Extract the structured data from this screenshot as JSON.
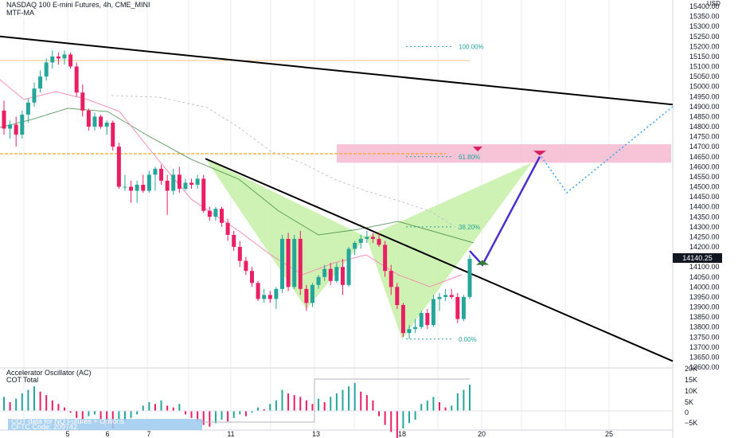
{
  "header": {
    "title": "NASDAQ 100 E-mini Futures, 4h, CME_MINI",
    "indicator": "MTF-MA",
    "osc_title": "Accelerator Oscillator (AC)",
    "cot_title": "COT Total",
    "cot_box": "COT data for NQ Futures + Options",
    "cot_box_sub": "CFTC Code: 209742"
  },
  "chart_data": {
    "type": "candlestick",
    "symbol": "NASDAQ 100 E-mini Futures",
    "timeframe": "4h",
    "currency": "USD",
    "last_price": "14140.25",
    "y_ticks": [
      "15400.00",
      "15350.00",
      "15300.00",
      "15250.00",
      "15200.00",
      "15150.00",
      "15100.00",
      "15050.00",
      "15000.00",
      "14950.00",
      "14900.00",
      "14850.00",
      "14800.00",
      "14750.00",
      "14700.00",
      "14650.00",
      "14600.00",
      "14550.00",
      "14500.00",
      "14450.00",
      "14400.00",
      "14350.00",
      "14300.00",
      "14250.00",
      "14200.00",
      "14150.00",
      "14100.00",
      "14050.00",
      "14000.00",
      "13950.00",
      "13900.00",
      "13850.00",
      "13800.00",
      "13750.00",
      "13700.00",
      "13650.00",
      "13600.00"
    ],
    "x_ticks": [
      "5",
      "6",
      "7",
      "11",
      "13",
      "18",
      "20",
      "25"
    ],
    "osc_ticks": [
      "20K",
      "15K",
      "10K",
      "5K",
      "0",
      "−5K"
    ],
    "fib_levels": [
      {
        "label": "100.00%",
        "price": 15200
      },
      {
        "label": "61.80%",
        "price": 14650
      },
      {
        "label": "38.20%",
        "price": 14300
      },
      {
        "label": "0.00%",
        "price": 13740
      }
    ],
    "candles": [
      {
        "o": 14880,
        "h": 14930,
        "l": 14760,
        "c": 14790
      },
      {
        "o": 14790,
        "h": 14830,
        "l": 14740,
        "c": 14810
      },
      {
        "o": 14810,
        "h": 14850,
        "l": 14700,
        "c": 14760
      },
      {
        "o": 14760,
        "h": 14880,
        "l": 14740,
        "c": 14860
      },
      {
        "o": 14860,
        "h": 14940,
        "l": 14820,
        "c": 14920
      },
      {
        "o": 14920,
        "h": 15020,
        "l": 14900,
        "c": 14990
      },
      {
        "o": 14990,
        "h": 15080,
        "l": 14970,
        "c": 15050
      },
      {
        "o": 15050,
        "h": 15140,
        "l": 15030,
        "c": 15120
      },
      {
        "o": 15120,
        "h": 15180,
        "l": 15090,
        "c": 15150
      },
      {
        "o": 15150,
        "h": 15170,
        "l": 15110,
        "c": 15140
      },
      {
        "o": 15140,
        "h": 15180,
        "l": 15110,
        "c": 15160
      },
      {
        "o": 15160,
        "h": 15170,
        "l": 15090,
        "c": 15100
      },
      {
        "o": 15100,
        "h": 15120,
        "l": 14950,
        "c": 14970
      },
      {
        "o": 14970,
        "h": 15010,
        "l": 14850,
        "c": 14880
      },
      {
        "o": 14880,
        "h": 14890,
        "l": 14780,
        "c": 14800
      },
      {
        "o": 14800,
        "h": 14870,
        "l": 14780,
        "c": 14850
      },
      {
        "o": 14850,
        "h": 14860,
        "l": 14790,
        "c": 14800
      },
      {
        "o": 14800,
        "h": 14830,
        "l": 14760,
        "c": 14820
      },
      {
        "o": 14820,
        "h": 14830,
        "l": 14680,
        "c": 14700
      },
      {
        "o": 14700,
        "h": 14720,
        "l": 14490,
        "c": 14500
      },
      {
        "o": 14500,
        "h": 14560,
        "l": 14480,
        "c": 14500
      },
      {
        "o": 14500,
        "h": 14530,
        "l": 14420,
        "c": 14480
      },
      {
        "o": 14480,
        "h": 14530,
        "l": 14420,
        "c": 14510
      },
      {
        "o": 14510,
        "h": 14560,
        "l": 14470,
        "c": 14480
      },
      {
        "o": 14480,
        "h": 14580,
        "l": 14470,
        "c": 14560
      },
      {
        "o": 14560,
        "h": 14600,
        "l": 14480,
        "c": 14590
      },
      {
        "o": 14590,
        "h": 14610,
        "l": 14510,
        "c": 14530
      },
      {
        "o": 14530,
        "h": 14560,
        "l": 14360,
        "c": 14480
      },
      {
        "o": 14480,
        "h": 14590,
        "l": 14460,
        "c": 14560
      },
      {
        "o": 14560,
        "h": 14600,
        "l": 14470,
        "c": 14490
      },
      {
        "o": 14490,
        "h": 14540,
        "l": 14480,
        "c": 14520
      },
      {
        "o": 14520,
        "h": 14540,
        "l": 14490,
        "c": 14510
      },
      {
        "o": 14510,
        "h": 14560,
        "l": 14490,
        "c": 14540
      },
      {
        "o": 14540,
        "h": 14560,
        "l": 14370,
        "c": 14380
      },
      {
        "o": 14380,
        "h": 14400,
        "l": 14330,
        "c": 14350
      },
      {
        "o": 14350,
        "h": 14400,
        "l": 14330,
        "c": 14390
      },
      {
        "o": 14390,
        "h": 14400,
        "l": 14300,
        "c": 14320
      },
      {
        "o": 14320,
        "h": 14340,
        "l": 14230,
        "c": 14260
      },
      {
        "o": 14260,
        "h": 14280,
        "l": 14180,
        "c": 14200
      },
      {
        "o": 14200,
        "h": 14230,
        "l": 14100,
        "c": 14130
      },
      {
        "o": 14130,
        "h": 14150,
        "l": 14060,
        "c": 14080
      },
      {
        "o": 14080,
        "h": 14100,
        "l": 14000,
        "c": 14020
      },
      {
        "o": 14020,
        "h": 14030,
        "l": 13930,
        "c": 13940
      },
      {
        "o": 13940,
        "h": 13990,
        "l": 13920,
        "c": 13960
      },
      {
        "o": 13960,
        "h": 13980,
        "l": 13920,
        "c": 13940
      },
      {
        "o": 13940,
        "h": 14000,
        "l": 13890,
        "c": 13990
      },
      {
        "o": 13990,
        "h": 14260,
        "l": 13970,
        "c": 14240
      },
      {
        "o": 14240,
        "h": 14270,
        "l": 13980,
        "c": 14000
      },
      {
        "o": 14000,
        "h": 14260,
        "l": 13990,
        "c": 14240
      },
      {
        "o": 14240,
        "h": 14280,
        "l": 13960,
        "c": 13990
      },
      {
        "o": 13990,
        "h": 14010,
        "l": 13880,
        "c": 13920
      },
      {
        "o": 13920,
        "h": 14020,
        "l": 13900,
        "c": 14010
      },
      {
        "o": 14010,
        "h": 14060,
        "l": 13990,
        "c": 14050
      },
      {
        "o": 14050,
        "h": 14110,
        "l": 14030,
        "c": 14090
      },
      {
        "o": 14090,
        "h": 14120,
        "l": 14010,
        "c": 14030
      },
      {
        "o": 14030,
        "h": 14120,
        "l": 14020,
        "c": 14100
      },
      {
        "o": 14100,
        "h": 14140,
        "l": 13960,
        "c": 14010
      },
      {
        "o": 14010,
        "h": 14200,
        "l": 14000,
        "c": 14190
      },
      {
        "o": 14190,
        "h": 14230,
        "l": 14160,
        "c": 14220
      },
      {
        "o": 14220,
        "h": 14260,
        "l": 14190,
        "c": 14240
      },
      {
        "o": 14240,
        "h": 14280,
        "l": 14220,
        "c": 14250
      },
      {
        "o": 14250,
        "h": 14270,
        "l": 14220,
        "c": 14240
      },
      {
        "o": 14240,
        "h": 14270,
        "l": 14200,
        "c": 14210
      },
      {
        "o": 14210,
        "h": 14230,
        "l": 14050,
        "c": 14080
      },
      {
        "o": 14080,
        "h": 14110,
        "l": 13960,
        "c": 14000
      },
      {
        "o": 14000,
        "h": 14020,
        "l": 13890,
        "c": 13910
      },
      {
        "o": 13910,
        "h": 13920,
        "l": 13750,
        "c": 13770
      },
      {
        "o": 13770,
        "h": 13810,
        "l": 13740,
        "c": 13790
      },
      {
        "o": 13790,
        "h": 13840,
        "l": 13770,
        "c": 13800
      },
      {
        "o": 13800,
        "h": 13880,
        "l": 13790,
        "c": 13870
      },
      {
        "o": 13870,
        "h": 13890,
        "l": 13790,
        "c": 13810
      },
      {
        "o": 13810,
        "h": 13960,
        "l": 13800,
        "c": 13940
      },
      {
        "o": 13940,
        "h": 13970,
        "l": 13880,
        "c": 13950
      },
      {
        "o": 13950,
        "h": 13990,
        "l": 13930,
        "c": 13960
      },
      {
        "o": 13960,
        "h": 13990,
        "l": 13940,
        "c": 13950
      },
      {
        "o": 13950,
        "h": 13970,
        "l": 13820,
        "c": 13840
      },
      {
        "o": 13840,
        "h": 13960,
        "l": 13830,
        "c": 13950
      },
      {
        "o": 13950,
        "h": 14160,
        "l": 13940,
        "c": 14140
      }
    ],
    "osc_bars": [
      8,
      5,
      7,
      10,
      12,
      14,
      11,
      9,
      6,
      4,
      2,
      -1,
      -4,
      -6,
      -3,
      -2,
      -5,
      -8,
      -10,
      -7,
      -6,
      -4,
      -2,
      3,
      5,
      4,
      6,
      3,
      2,
      4,
      -2,
      -4,
      -6,
      -8,
      -9,
      -7,
      -5,
      -6,
      -4,
      -2,
      -3,
      -1,
      2,
      1,
      4,
      6,
      12,
      10,
      9,
      8,
      6,
      4,
      7,
      5,
      8,
      10,
      12,
      14,
      16,
      11,
      9,
      6,
      -3,
      -8,
      -12,
      -16,
      -10,
      -7,
      -5,
      4,
      6,
      8,
      5,
      2,
      3,
      10,
      12,
      15
    ]
  }
}
